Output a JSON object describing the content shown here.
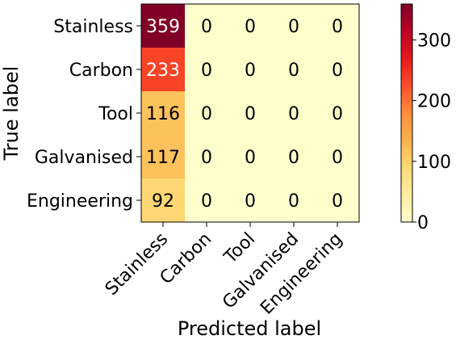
{
  "chart_data": {
    "type": "heatmap",
    "title": "",
    "xlabel": "Predicted label",
    "ylabel": "True label",
    "x_categories": [
      "Stainless",
      "Carbon",
      "Tool",
      "Galvanised",
      "Engineering"
    ],
    "y_categories": [
      "Stainless",
      "Carbon",
      "Tool",
      "Galvanised",
      "Engineering"
    ],
    "matrix": [
      [
        359,
        0,
        0,
        0,
        0
      ],
      [
        233,
        0,
        0,
        0,
        0
      ],
      [
        116,
        0,
        0,
        0,
        0
      ],
      [
        117,
        0,
        0,
        0,
        0
      ],
      [
        92,
        0,
        0,
        0,
        0
      ]
    ],
    "colormap": "YlOrRd",
    "colorbar": {
      "min": 0,
      "max": 359,
      "ticks": [
        0,
        100,
        200,
        300
      ]
    },
    "grid": false
  }
}
